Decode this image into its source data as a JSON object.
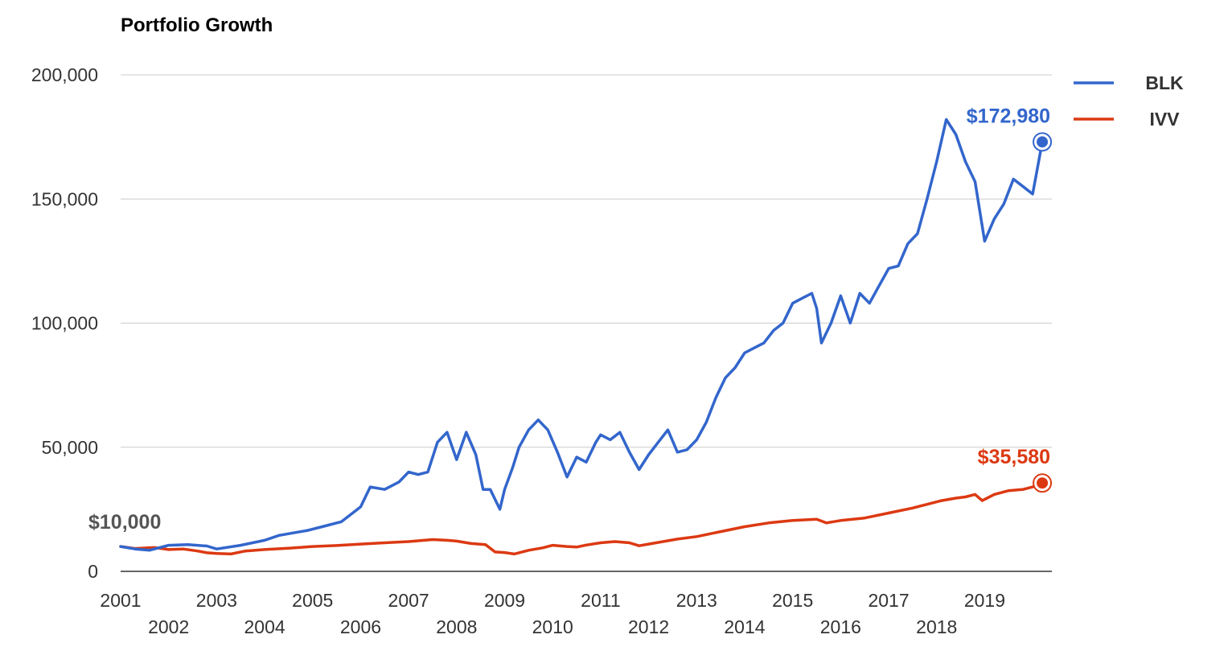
{
  "chart_data": {
    "type": "line",
    "title": "Portfolio Growth",
    "xlabel": "",
    "ylabel": "",
    "xlim": [
      2001.0,
      2020.4
    ],
    "ylim": [
      0,
      200000
    ],
    "y_ticks": [
      "200,000",
      "150,000",
      "100,000",
      "50,000",
      "0"
    ],
    "y_tick_values": [
      200000,
      150000,
      100000,
      50000,
      0
    ],
    "x_ticks_upper": [
      "2001",
      "2003",
      "2005",
      "2007",
      "2009",
      "2011",
      "2013",
      "2015",
      "2017",
      "2019"
    ],
    "x_ticks_lower": [
      "2002",
      "2004",
      "2006",
      "2008",
      "2010",
      "2012",
      "2014",
      "2016",
      "2018"
    ],
    "grid": true,
    "legend_position": "top-right",
    "start_label": "$10,000",
    "series": [
      {
        "name": "BLK",
        "color": "#3366cc",
        "end_label": "$172,980",
        "x": [
          2001.0,
          2001.3,
          2001.6,
          2002.0,
          2002.4,
          2002.8,
          2003.0,
          2003.5,
          2004.0,
          2004.3,
          2004.6,
          2004.9,
          2005.2,
          2005.6,
          2006.0,
          2006.2,
          2006.5,
          2006.8,
          2007.0,
          2007.2,
          2007.4,
          2007.6,
          2007.8,
          2008.0,
          2008.2,
          2008.4,
          2008.55,
          2008.7,
          2008.9,
          2009.0,
          2009.17,
          2009.3,
          2009.5,
          2009.7,
          2009.9,
          2010.1,
          2010.3,
          2010.5,
          2010.7,
          2010.9,
          2011.0,
          2011.2,
          2011.4,
          2011.6,
          2011.8,
          2012.0,
          2012.2,
          2012.4,
          2012.6,
          2012.8,
          2013.0,
          2013.2,
          2013.4,
          2013.6,
          2013.8,
          2014.0,
          2014.2,
          2014.4,
          2014.6,
          2014.8,
          2015.0,
          2015.2,
          2015.4,
          2015.5,
          2015.6,
          2015.8,
          2016.0,
          2016.2,
          2016.4,
          2016.6,
          2016.8,
          2017.0,
          2017.2,
          2017.4,
          2017.6,
          2017.8,
          2018.0,
          2018.2,
          2018.4,
          2018.6,
          2018.8,
          2019.0,
          2019.2,
          2019.4,
          2019.6,
          2019.8,
          2020.0,
          2020.2
        ],
        "values": [
          10000,
          9000,
          8500,
          10500,
          10800,
          10200,
          9000,
          10500,
          12500,
          14500,
          15500,
          16500,
          18000,
          20000,
          26000,
          34000,
          33000,
          36000,
          40000,
          39000,
          40000,
          52000,
          56000,
          45000,
          56000,
          47000,
          33000,
          33000,
          25000,
          33000,
          42000,
          50000,
          57000,
          61000,
          57000,
          48000,
          38000,
          46000,
          44000,
          52000,
          55000,
          53000,
          56000,
          48000,
          41000,
          47000,
          52000,
          57000,
          48000,
          49000,
          53000,
          60000,
          70000,
          78000,
          82000,
          88000,
          90000,
          92000,
          97000,
          100000,
          108000,
          110000,
          112000,
          106000,
          92000,
          100000,
          111000,
          100000,
          112000,
          108000,
          115000,
          122000,
          123000,
          132000,
          136000,
          150000,
          165000,
          182000,
          176000,
          165000,
          157000,
          133000,
          142000,
          148000,
          158000,
          155000,
          152000,
          172980
        ]
      },
      {
        "name": "IVV",
        "color": "#dc3912",
        "end_label": "$35,580",
        "x": [
          2001.0,
          2001.3,
          2001.7,
          2002.0,
          2002.3,
          2002.6,
          2002.8,
          2003.0,
          2003.3,
          2003.6,
          2004.0,
          2004.5,
          2005.0,
          2005.5,
          2006.0,
          2006.5,
          2007.0,
          2007.5,
          2007.8,
          2008.0,
          2008.3,
          2008.6,
          2008.8,
          2009.0,
          2009.2,
          2009.5,
          2009.8,
          2010.0,
          2010.3,
          2010.5,
          2010.7,
          2011.0,
          2011.3,
          2011.6,
          2011.8,
          2012.0,
          2012.3,
          2012.6,
          2013.0,
          2013.5,
          2014.0,
          2014.5,
          2015.0,
          2015.5,
          2015.7,
          2016.0,
          2016.5,
          2017.0,
          2017.5,
          2017.9,
          2018.1,
          2018.4,
          2018.6,
          2018.8,
          2018.95,
          2019.2,
          2019.5,
          2019.8,
          2020.0,
          2020.2
        ],
        "values": [
          10000,
          9200,
          9600,
          8800,
          9000,
          8200,
          7500,
          7200,
          7000,
          8200,
          8800,
          9300,
          10000,
          10400,
          11000,
          11500,
          12000,
          12800,
          12500,
          12200,
          11200,
          10800,
          7800,
          7600,
          7000,
          8500,
          9500,
          10500,
          10000,
          9800,
          10600,
          11500,
          12000,
          11500,
          10300,
          11000,
          12000,
          13000,
          14000,
          16000,
          18000,
          19500,
          20500,
          21000,
          19500,
          20500,
          21500,
          23500,
          25500,
          27500,
          28500,
          29500,
          30000,
          31000,
          28500,
          31000,
          32500,
          33000,
          34000,
          35580
        ]
      }
    ]
  }
}
